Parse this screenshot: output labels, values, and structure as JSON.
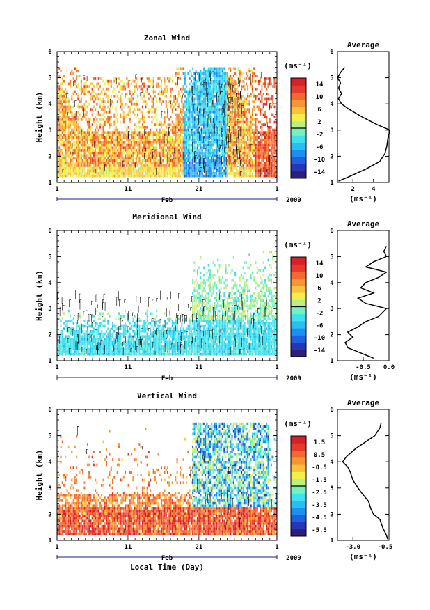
{
  "figure": {
    "year_label": "2009",
    "month_label": "Feb",
    "xlabel": "Local Time (Day)",
    "ylabel": "Height (km)",
    "avg_unit": "(ms⁻¹)",
    "colorbar_unit": "(ms⁻¹)",
    "x_ticks": [
      "1",
      "11",
      "21",
      "1"
    ],
    "y_ticks": [
      "1",
      "2",
      "3",
      "4",
      "5",
      "6"
    ],
    "avg_title": "Average"
  },
  "colors": {
    "palette": [
      "#2b1f7a",
      "#2636b5",
      "#1f5fe0",
      "#1e8ff0",
      "#27bff2",
      "#3fe0ef",
      "#73f2c0",
      "#b9f080",
      "#f2ee4a",
      "#f8c23a",
      "#f79534",
      "#f26a2e",
      "#e8392c",
      "#d8202a"
    ],
    "line": "#000000"
  },
  "chart_data": [
    {
      "type": "heatmap",
      "title": "Zonal Wind",
      "xlabel": "",
      "ylabel": "Height (km)",
      "xlim": [
        1,
        32
      ],
      "ylim": [
        1,
        6
      ],
      "colorbar_ticks": [
        "14",
        "10",
        "6",
        "2",
        "-2",
        "-6",
        "-10",
        "-14"
      ],
      "colorbar_range": [
        -16,
        16
      ],
      "pattern": "zonal",
      "average_profile": {
        "title": "Average",
        "xlabel": "(ms⁻¹)",
        "xlim": [
          0.5,
          5.5
        ],
        "x_ticks": [
          2,
          4
        ],
        "x_tick_labels": [
          "2",
          "4"
        ],
        "heights_km": [
          1.05,
          1.2,
          1.5,
          1.8,
          2.1,
          2.4,
          2.7,
          3.0,
          3.2,
          3.5,
          3.8,
          4.0,
          4.2,
          4.4,
          4.6,
          4.8,
          5.0,
          5.2,
          5.4
        ],
        "values": [
          0.6,
          1.5,
          3.2,
          4.6,
          5.1,
          5.3,
          5.4,
          5.6,
          4.4,
          2.9,
          1.6,
          0.9,
          0.6,
          0.9,
          0.6,
          0.8,
          0.5,
          0.8,
          1.2
        ]
      }
    },
    {
      "type": "heatmap",
      "title": "Meridional Wind",
      "xlabel": "",
      "ylabel": "Height (km)",
      "xlim": [
        1,
        32
      ],
      "ylim": [
        1,
        6
      ],
      "colorbar_ticks": [
        "14",
        "10",
        "6",
        "2",
        "-2",
        "-6",
        "-10",
        "-14"
      ],
      "colorbar_range": [
        -16,
        16
      ],
      "pattern": "meridional",
      "average_profile": {
        "title": "Average",
        "xlabel": "(ms⁻¹)",
        "xlim": [
          -1.0,
          0.0
        ],
        "x_ticks": [
          -0.5,
          0.0
        ],
        "x_tick_labels": [
          "-0.5",
          "0.0"
        ],
        "heights_km": [
          1.1,
          1.3,
          1.5,
          1.7,
          1.9,
          2.1,
          2.3,
          2.5,
          2.7,
          2.9,
          3.0,
          3.2,
          3.4,
          3.6,
          3.8,
          4.0,
          4.2,
          4.4,
          4.6,
          4.8,
          5.0,
          5.2,
          5.4
        ],
        "values": [
          -0.3,
          -0.55,
          -0.8,
          -0.85,
          -0.7,
          -0.8,
          -0.6,
          -0.45,
          -0.2,
          -0.1,
          -0.05,
          -0.45,
          -0.6,
          -0.3,
          -0.55,
          -0.45,
          -0.2,
          -0.05,
          -0.45,
          -0.3,
          -0.05,
          -0.1,
          -0.05
        ]
      }
    },
    {
      "type": "heatmap",
      "title": "Vertical Wind",
      "xlabel": "Local Time (Day)",
      "ylabel": "Height (km)",
      "xlim": [
        1,
        32
      ],
      "ylim": [
        1,
        6
      ],
      "colorbar_ticks": [
        "1.5",
        "0.5",
        "-0.5",
        "-1.5",
        "-2.5",
        "-3.5",
        "-4.5",
        "-5.5"
      ],
      "colorbar_range": [
        -6,
        2
      ],
      "pattern": "vertical",
      "average_profile": {
        "title": "Average",
        "xlabel": "(ms⁻¹)",
        "xlim": [
          -4.2,
          -0.2
        ],
        "x_ticks": [
          -3.0,
          -0.5
        ],
        "x_tick_labels": [
          "-3.0",
          "-0.5"
        ],
        "heights_km": [
          1.05,
          1.2,
          1.5,
          1.8,
          2.0,
          2.2,
          2.5,
          2.8,
          3.0,
          3.3,
          3.6,
          3.8,
          4.0,
          4.2,
          4.5,
          4.8,
          5.0,
          5.3,
          5.5
        ],
        "values": [
          -0.3,
          -0.4,
          -0.7,
          -0.9,
          -1.4,
          -1.6,
          -1.8,
          -2.3,
          -2.6,
          -3.0,
          -3.2,
          -3.4,
          -3.8,
          -3.5,
          -2.8,
          -1.9,
          -1.3,
          -0.9,
          -0.8
        ]
      }
    }
  ]
}
